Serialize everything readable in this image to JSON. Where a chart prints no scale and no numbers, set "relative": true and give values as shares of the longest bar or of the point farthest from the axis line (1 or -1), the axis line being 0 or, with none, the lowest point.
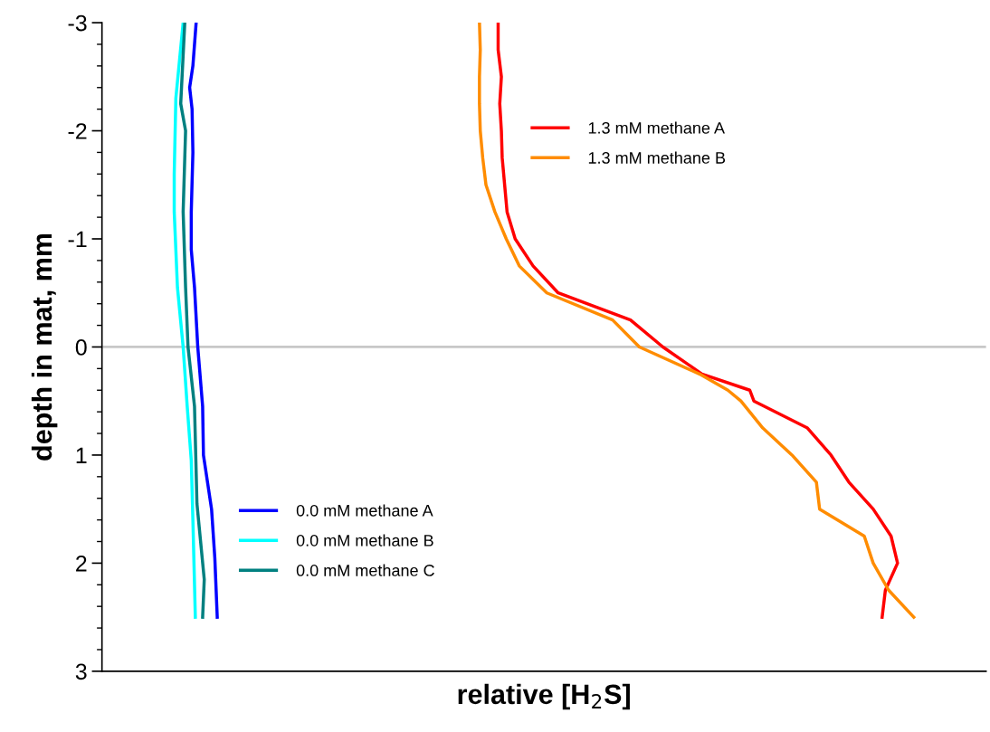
{
  "chart_data": {
    "type": "line",
    "orientation": "horizontal",
    "relative": true,
    "xlabel": "relative [H$_{2}$S]",
    "ylabel": "depth in mat, mm",
    "ylim": [
      3,
      -3
    ],
    "yticks": [
      -3,
      -2,
      -1,
      0,
      1,
      2,
      3
    ],
    "ref_lines": [
      {
        "axis": "y",
        "value": 0,
        "color": "#c8c8c8"
      }
    ],
    "legend": "center",
    "grid": false,
    "series": [
      {
        "name": "1.3 mM methane A",
        "color": "#ff0000",
        "x": [
          -3,
          -2.75,
          -2.5,
          -2.25,
          -2,
          -1.75,
          -1.5,
          -1.25,
          -1,
          -0.75,
          -0.5,
          -0.25,
          0,
          0.25,
          0.4,
          0.5,
          0.75,
          1,
          1.25,
          1.5,
          1.75,
          2,
          2.25,
          2.5
        ],
        "values": [
          0.488,
          0.488,
          0.492,
          0.49,
          0.492,
          0.493,
          0.496,
          0.499,
          0.509,
          0.531,
          0.562,
          0.651,
          0.691,
          0.739,
          0.798,
          0.803,
          0.869,
          0.898,
          0.92,
          0.95,
          0.972,
          0.98,
          0.965,
          0.961
        ]
      },
      {
        "name": "1.3 mM methane B",
        "color": "#ff8c00",
        "x": [
          -3,
          -2.75,
          -2.5,
          -2.25,
          -2,
          -1.75,
          -1.5,
          -1.25,
          -1,
          -0.75,
          -0.5,
          -0.25,
          0,
          0.25,
          0.4,
          0.5,
          0.75,
          1,
          1.25,
          1.5,
          1.75,
          2,
          2.25,
          2.5
        ],
        "values": [
          0.465,
          0.466,
          0.465,
          0.465,
          0.466,
          0.469,
          0.473,
          0.484,
          0.498,
          0.514,
          0.548,
          0.629,
          0.662,
          0.736,
          0.771,
          0.787,
          0.814,
          0.85,
          0.88,
          0.884,
          0.939,
          0.95,
          0.969,
          1.0
        ]
      },
      {
        "name": "0.0 mM methane A",
        "color": "#0000ff",
        "x": [
          -3,
          -2.6,
          -2.4,
          -2.2,
          -1.8,
          -1.25,
          -0.9,
          -0.55,
          0,
          0.55,
          1,
          1.5,
          1.95,
          2.5
        ],
        "values": [
          0.116,
          0.112,
          0.108,
          0.111,
          0.112,
          0.11,
          0.11,
          0.114,
          0.118,
          0.124,
          0.125,
          0.135,
          0.139,
          0.142
        ]
      },
      {
        "name": "0.0 mM methane B",
        "color": "#00ffff",
        "x": [
          -3,
          -2.3,
          -1.6,
          -1.25,
          -0.55,
          0,
          0.55,
          1.05,
          1.6,
          2.5
        ],
        "values": [
          0.1,
          0.091,
          0.089,
          0.089,
          0.093,
          0.1,
          0.105,
          0.11,
          0.112,
          0.115
        ]
      },
      {
        "name": "0.0 mM methane C",
        "color": "#008080",
        "x": [
          -3,
          -2.7,
          -2.25,
          -2,
          -1.25,
          -0.55,
          0,
          0.55,
          1.45,
          2.15,
          2.5
        ],
        "values": [
          0.102,
          0.1,
          0.097,
          0.103,
          0.1,
          0.103,
          0.106,
          0.114,
          0.117,
          0.126,
          0.124
        ]
      }
    ]
  }
}
